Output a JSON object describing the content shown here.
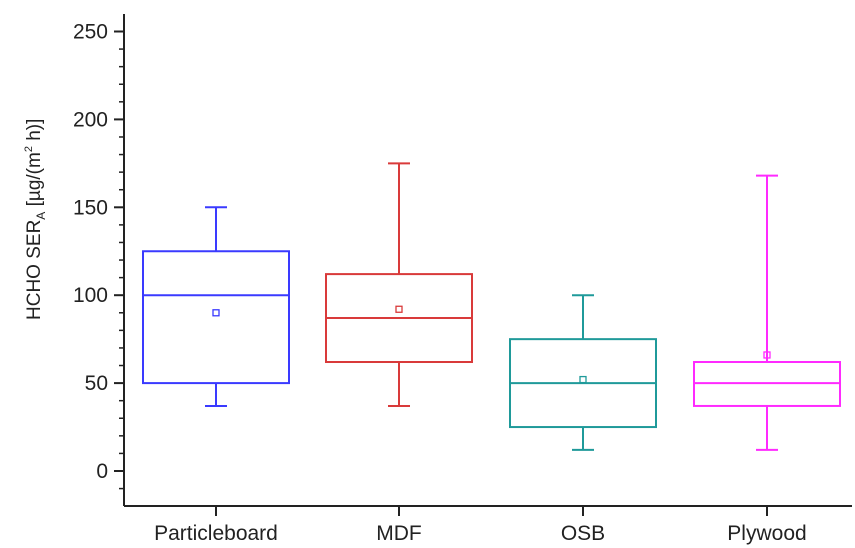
{
  "chart_data": {
    "type": "box",
    "title": "",
    "xlabel": "",
    "ylabel": {
      "prefix": "HCHO SER",
      "subscript": "A",
      "unit_open": " [µg/(m",
      "superscript": "2",
      "unit_close": " h)]"
    },
    "ylim": [
      -20,
      255
    ],
    "yticks": [
      0,
      50,
      100,
      150,
      200,
      250
    ],
    "grid": false,
    "legend": "none",
    "categories": [
      "Particleboard",
      "MDF",
      "OSB",
      "Plywood"
    ],
    "boxes": [
      {
        "category": "Particleboard",
        "whisker_low": 37,
        "q1": 50,
        "median": 100,
        "q3": 125,
        "whisker_high": 150,
        "mean": 90,
        "color": "#3a3aff"
      },
      {
        "category": "MDF",
        "whisker_low": 37,
        "q1": 62,
        "median": 87,
        "q3": 112,
        "whisker_high": 175,
        "mean": 92,
        "color": "#d93a3a"
      },
      {
        "category": "OSB",
        "whisker_low": 12,
        "q1": 25,
        "median": 50,
        "q3": 75,
        "whisker_high": 100,
        "mean": 52,
        "color": "#1f9a9a"
      },
      {
        "category": "Plywood",
        "whisker_low": 12,
        "q1": 37,
        "median": 50,
        "q3": 62,
        "whisker_high": 168,
        "mean": 66,
        "color": "#ff2aff"
      }
    ]
  }
}
